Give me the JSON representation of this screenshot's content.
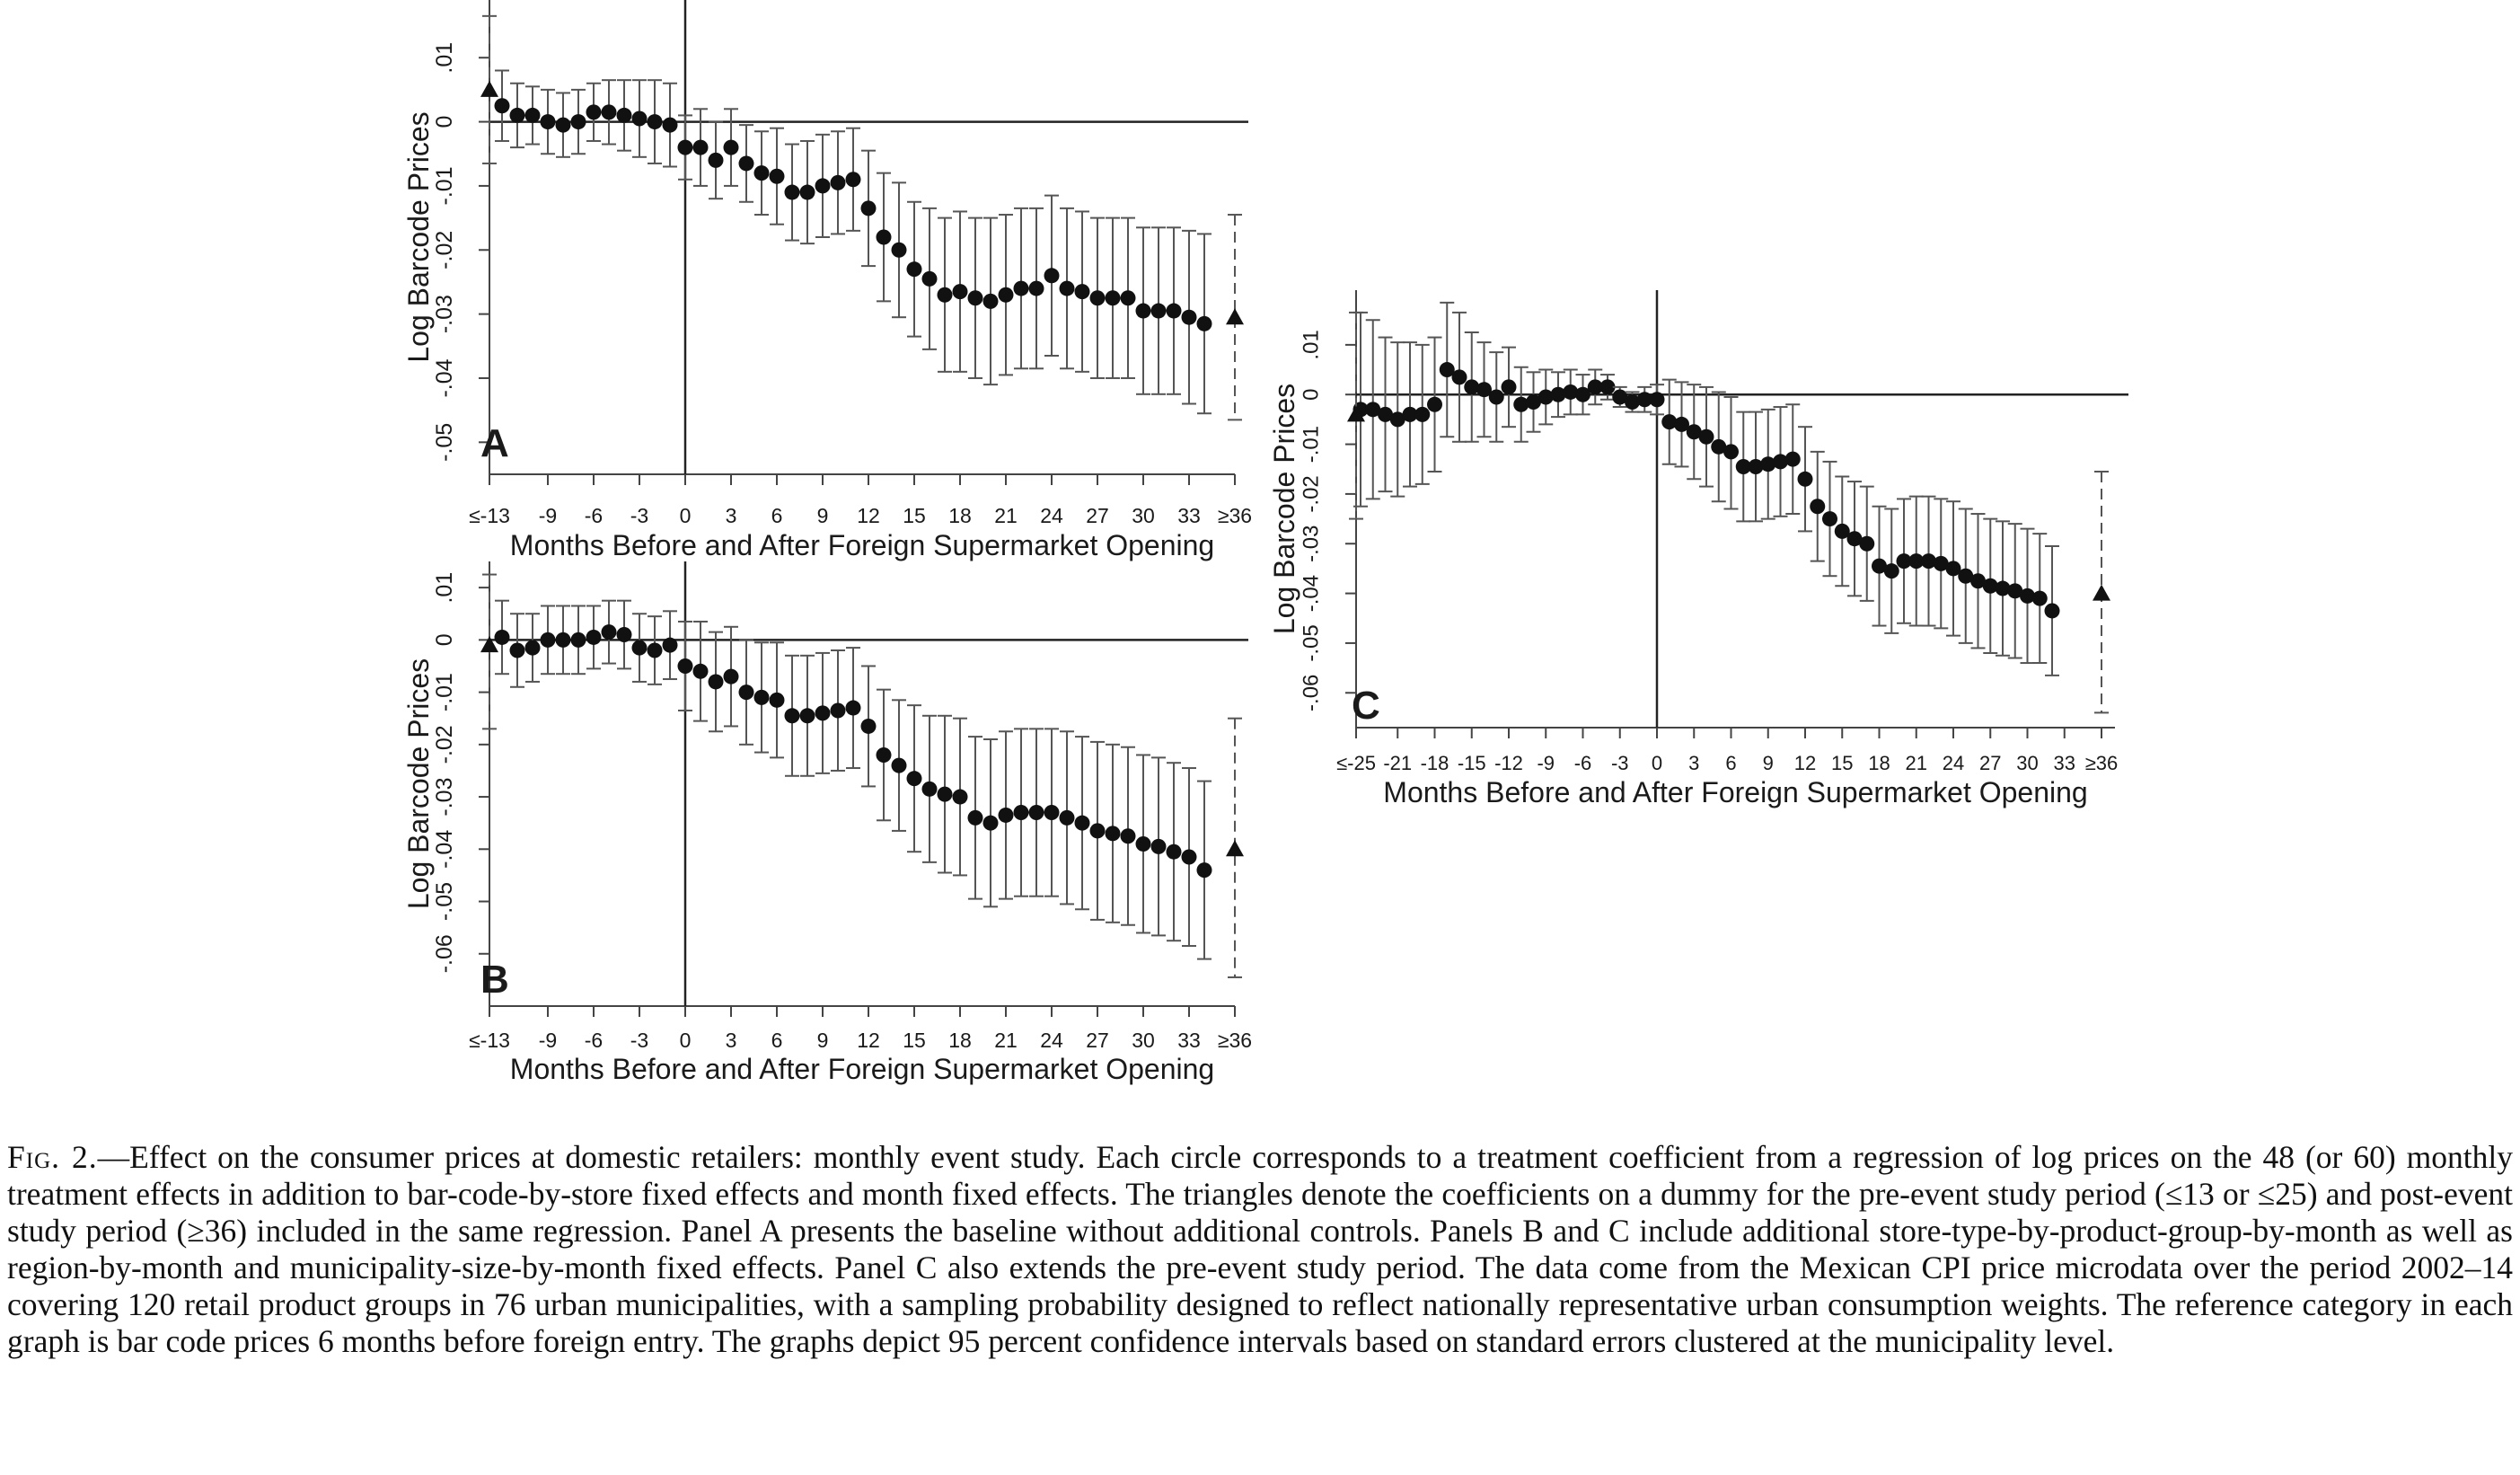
{
  "caption": {
    "label": "Fig. 2.",
    "text": "—Effect on the consumer prices at domestic retailers: monthly event study. Each circle corresponds to a treatment coefficient from a regression of log prices on the 48 (or 60) monthly treatment effects in addition to bar-code-by-store fixed effects and month fixed effects. The triangles denote the coefficients on a dummy for the pre-event study period (≤13 or ≤25) and post-event study period (≥36) included in the same regression. Panel A presents the baseline without additional controls. Panels B and C include additional store-type-by-product-group-by-month as well as region-by-month and municipality-size-by-month fixed effects. Panel C also extends the pre-event study period. The data come from the Mexican CPI price microdata over the period 2002–14 covering 120 retail product groups in 76 urban municipalities, with a sampling probability designed to reflect nationally representative urban consumption weights. The reference category in each graph is bar code prices 6 months before foreign entry. The graphs depict 95 percent confidence intervals based on standard errors clustered at the municipality level."
  },
  "chart_data": [
    {
      "type": "scatter",
      "panel_label": "A",
      "xlabel": "Months Before and After Foreign Supermarket Opening",
      "ylabel": "Log Barcode Prices",
      "x_ticks": [
        "≤-13",
        "-9",
        "-6",
        "-3",
        "0",
        "3",
        "6",
        "9",
        "12",
        "15",
        "18",
        "21",
        "24",
        "27",
        "30",
        "33",
        "≥36"
      ],
      "y_ticks": [
        "-.05",
        "-.04",
        "-.03",
        "-.02",
        "-.01",
        "0",
        ".01"
      ],
      "ylim": [
        -0.055,
        0.019
      ],
      "start_month": -12,
      "pre_bin": {
        "x": "≤-13",
        "y": 0.005,
        "ci": [
          -0.0065,
          0.0165
        ]
      },
      "post_bin": {
        "x": "≥36",
        "y": -0.0305,
        "ci": [
          -0.0465,
          -0.0145
        ]
      },
      "series": [
        {
          "values": [
            0.0025,
            0.001,
            0.001,
            0.0,
            -0.0005,
            0.0,
            0.0015,
            0.0015,
            0.001,
            0.0005,
            0.0,
            -0.0005,
            -0.004,
            -0.004,
            -0.006,
            -0.004,
            -0.0065,
            -0.008,
            -0.0085,
            -0.011,
            -0.011,
            -0.01,
            -0.0095,
            -0.009,
            -0.0135,
            -0.018,
            -0.02,
            -0.023,
            -0.0245,
            -0.027,
            -0.0265,
            -0.0275,
            -0.028,
            -0.027,
            -0.026,
            -0.026,
            -0.024,
            -0.026,
            -0.0265,
            -0.0275,
            -0.0275,
            -0.0275,
            -0.0295,
            -0.0295,
            -0.0295,
            -0.0305,
            -0.0315
          ]
        },
        {
          "values": [
            0.008,
            0.006,
            0.0055,
            0.005,
            0.0045,
            0.005,
            0.006,
            0.0065,
            0.0065,
            0.0065,
            0.0065,
            0.006,
            0.001,
            0.002,
            0.0,
            0.002,
            -0.0005,
            -0.0015,
            -0.001,
            -0.0035,
            -0.003,
            -0.002,
            -0.0015,
            -0.001,
            -0.0045,
            -0.008,
            -0.0095,
            -0.0125,
            -0.0135,
            -0.015,
            -0.014,
            -0.015,
            -0.015,
            -0.0145,
            -0.0135,
            -0.0135,
            -0.0115,
            -0.0135,
            -0.014,
            -0.015,
            -0.015,
            -0.015,
            -0.0165,
            -0.0165,
            -0.0165,
            -0.017,
            -0.0175
          ]
        },
        {
          "values": [
            -0.003,
            -0.004,
            -0.0035,
            -0.005,
            -0.0055,
            -0.005,
            -0.003,
            -0.0035,
            -0.0045,
            -0.0055,
            -0.0065,
            -0.007,
            -0.009,
            -0.01,
            -0.012,
            -0.01,
            -0.0125,
            -0.0145,
            -0.016,
            -0.0185,
            -0.019,
            -0.018,
            -0.0175,
            -0.017,
            -0.0225,
            -0.028,
            -0.0305,
            -0.0335,
            -0.0355,
            -0.039,
            -0.039,
            -0.04,
            -0.041,
            -0.0395,
            -0.0385,
            -0.0385,
            -0.0365,
            -0.0385,
            -0.039,
            -0.04,
            -0.04,
            -0.04,
            -0.0425,
            -0.0425,
            -0.0425,
            -0.044,
            -0.0455
          ]
        }
      ]
    },
    {
      "type": "scatter",
      "panel_label": "B",
      "xlabel": "Months Before and After Foreign Supermarket Opening",
      "ylabel": "Log Barcode Prices",
      "x_ticks": [
        "≤-13",
        "-9",
        "-6",
        "-3",
        "0",
        "3",
        "6",
        "9",
        "12",
        "15",
        "18",
        "21",
        "24",
        "27",
        "30",
        "33",
        "≥36"
      ],
      "y_ticks": [
        "-.06",
        "-.05",
        "-.04",
        "-.03",
        "-.02",
        "-.01",
        "0",
        ".01"
      ],
      "ylim": [
        -0.07,
        0.015
      ],
      "start_month": -12,
      "pre_bin": {
        "x": "≤-13",
        "y": -0.001,
        "ci": [
          -0.017,
          0.0125
        ]
      },
      "post_bin": {
        "x": "≥36",
        "y": -0.04,
        "ci": [
          -0.0645,
          -0.015
        ]
      },
      "series": [
        {
          "values": [
            0.0005,
            -0.002,
            -0.0015,
            0.0,
            0.0,
            0.0,
            0.0005,
            0.0015,
            0.001,
            -0.0015,
            -0.002,
            -0.001,
            -0.005,
            -0.006,
            -0.008,
            -0.007,
            -0.01,
            -0.011,
            -0.0115,
            -0.0145,
            -0.0145,
            -0.014,
            -0.0135,
            -0.013,
            -0.0165,
            -0.022,
            -0.024,
            -0.0265,
            -0.0285,
            -0.0295,
            -0.03,
            -0.034,
            -0.035,
            -0.0335,
            -0.033,
            -0.033,
            -0.033,
            -0.034,
            -0.035,
            -0.0365,
            -0.037,
            -0.0375,
            -0.039,
            -0.0395,
            -0.0405,
            -0.0415,
            -0.044
          ]
        },
        {
          "values": [
            0.0075,
            0.005,
            0.005,
            0.0065,
            0.0065,
            0.0065,
            0.0065,
            0.0075,
            0.0075,
            0.005,
            0.0045,
            0.0055,
            0.0035,
            0.0035,
            0.0015,
            0.0025,
            0.0,
            -0.0005,
            -0.0005,
            -0.003,
            -0.003,
            -0.0025,
            -0.002,
            -0.0015,
            -0.005,
            -0.0095,
            -0.0115,
            -0.0125,
            -0.0145,
            -0.0145,
            -0.015,
            -0.0185,
            -0.019,
            -0.0175,
            -0.017,
            -0.017,
            -0.017,
            -0.0175,
            -0.0185,
            -0.0195,
            -0.02,
            -0.0205,
            -0.022,
            -0.0225,
            -0.0235,
            -0.0245,
            -0.027
          ]
        },
        {
          "values": [
            -0.0065,
            -0.009,
            -0.008,
            -0.0065,
            -0.0065,
            -0.0065,
            -0.0055,
            -0.0045,
            -0.0055,
            -0.008,
            -0.0085,
            -0.0075,
            -0.0135,
            -0.0155,
            -0.0175,
            -0.0165,
            -0.02,
            -0.0215,
            -0.0225,
            -0.026,
            -0.026,
            -0.0255,
            -0.025,
            -0.0245,
            -0.028,
            -0.0345,
            -0.0365,
            -0.0405,
            -0.0425,
            -0.0445,
            -0.045,
            -0.0495,
            -0.051,
            -0.0495,
            -0.049,
            -0.049,
            -0.049,
            -0.0505,
            -0.0515,
            -0.0535,
            -0.054,
            -0.0545,
            -0.056,
            -0.0565,
            -0.0575,
            -0.0585,
            -0.061
          ]
        }
      ]
    },
    {
      "type": "scatter",
      "panel_label": "C",
      "xlabel": "Months Before and After Foreign Supermarket Opening",
      "ylabel": "Log Barcode Prices",
      "x_ticks": [
        "≤-25",
        "-21",
        "-18",
        "-15",
        "-12",
        "-9",
        "-6",
        "-3",
        "0",
        "3",
        "6",
        "9",
        "12",
        "15",
        "18",
        "21",
        "24",
        "27",
        "30",
        "33",
        "≥36"
      ],
      "y_ticks": [
        "-.06",
        "-.05",
        "-.04",
        "-.03",
        "-.02",
        "-.01",
        "0",
        ".01"
      ],
      "ylim": [
        -0.067,
        0.021
      ],
      "start_month": -24,
      "pre_bin": {
        "x": "≤-25",
        "y": -0.004,
        "ci": [
          -0.025,
          0.0165
        ]
      },
      "post_bin": {
        "x": "≥36",
        "y": -0.04,
        "ci": [
          -0.064,
          -0.0155
        ]
      },
      "series": [
        {
          "values": [
            -0.003,
            -0.003,
            -0.004,
            -0.005,
            -0.004,
            -0.004,
            -0.002,
            0.005,
            0.0035,
            0.0015,
            0.001,
            -0.0005,
            0.0015,
            -0.002,
            -0.0015,
            -0.0005,
            0.0,
            0.0005,
            0.0,
            0.0015,
            0.0015,
            -0.0005,
            -0.0015,
            -0.001,
            -0.001,
            -0.0055,
            -0.006,
            -0.0075,
            -0.0085,
            -0.0105,
            -0.0115,
            -0.0145,
            -0.0145,
            -0.014,
            -0.0135,
            -0.013,
            -0.017,
            -0.0225,
            -0.025,
            -0.0275,
            -0.029,
            -0.03,
            -0.0345,
            -0.0355,
            -0.0335,
            -0.0335,
            -0.0335,
            -0.034,
            -0.035,
            -0.0365,
            -0.0375,
            -0.0385,
            -0.039,
            -0.0395,
            -0.0405,
            -0.041,
            -0.0435
          ]
        },
        {
          "values": [
            0.0165,
            0.015,
            0.0115,
            0.0105,
            0.0105,
            0.01,
            0.0115,
            0.0185,
            0.0165,
            0.0125,
            0.0105,
            0.0085,
            0.0095,
            0.0055,
            0.0045,
            0.005,
            0.0045,
            0.005,
            0.004,
            0.005,
            0.004,
            0.0015,
            0.0005,
            0.0015,
            0.002,
            0.003,
            0.0025,
            0.002,
            0.0015,
            0.0005,
            -0.0005,
            -0.0035,
            -0.0035,
            -0.003,
            -0.0025,
            -0.002,
            -0.0065,
            -0.0115,
            -0.0135,
            -0.0165,
            -0.0175,
            -0.0185,
            -0.0225,
            -0.023,
            -0.021,
            -0.0205,
            -0.0205,
            -0.021,
            -0.0215,
            -0.023,
            -0.024,
            -0.025,
            -0.0255,
            -0.026,
            -0.027,
            -0.028,
            -0.0305
          ]
        },
        {
          "values": [
            -0.0225,
            -0.021,
            -0.0195,
            -0.0205,
            -0.0185,
            -0.018,
            -0.0155,
            -0.0085,
            -0.0095,
            -0.0095,
            -0.0085,
            -0.0095,
            -0.0065,
            -0.0095,
            -0.0075,
            -0.006,
            -0.0045,
            -0.004,
            -0.004,
            -0.002,
            -0.001,
            -0.0025,
            -0.0035,
            -0.0035,
            -0.004,
            -0.014,
            -0.0145,
            -0.017,
            -0.0185,
            -0.0215,
            -0.023,
            -0.0255,
            -0.0255,
            -0.025,
            -0.0245,
            -0.024,
            -0.0275,
            -0.0335,
            -0.0365,
            -0.0385,
            -0.0405,
            -0.0415,
            -0.0465,
            -0.048,
            -0.046,
            -0.0465,
            -0.0465,
            -0.047,
            -0.0485,
            -0.05,
            -0.051,
            -0.052,
            -0.0525,
            -0.053,
            -0.054,
            -0.054,
            -0.0565
          ]
        }
      ]
    }
  ]
}
